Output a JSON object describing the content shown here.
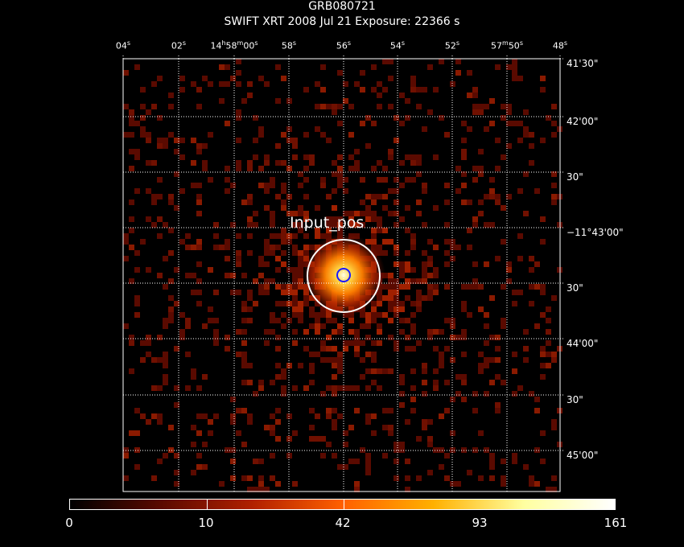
{
  "header": {
    "title": "GRB080721",
    "subtitle": "SWIFT XRT    2008 Jul 21     Exposure: 22366 s"
  },
  "ra_ticks": [
    {
      "html": "04<sup>s</sup>"
    },
    {
      "html": "02<sup>s</sup>"
    },
    {
      "html": "14<sup>h</sup>58<sup>m</sup>00<sup>s</sup>"
    },
    {
      "html": "58<sup>s</sup>"
    },
    {
      "html": "56<sup>s</sup>"
    },
    {
      "html": "54<sup>s</sup>"
    },
    {
      "html": "52<sup>s</sup>"
    },
    {
      "html": "57<sup>m</sup>50<sup>s</sup>"
    },
    {
      "html": "48<sup>s</sup>"
    }
  ],
  "dec_ticks": [
    "41'30\"",
    "42'00\"",
    "30\"",
    "−11°43'00\"",
    "30\"",
    "44'00\"",
    "30\"",
    "45'00\""
  ],
  "source_marker": {
    "label": "Input_pos",
    "circle_color": "#ffffff",
    "inner_circle_color": "#1a1aff"
  },
  "colorbar": {
    "labels": [
      "0",
      "10",
      "42",
      "93",
      "161"
    ],
    "colors": [
      "#000000",
      "#5a0a00",
      "#b02000",
      "#ff6000",
      "#ffb000",
      "#ffffa0",
      "#ffffff"
    ]
  },
  "grid_color": "#ffffff"
}
